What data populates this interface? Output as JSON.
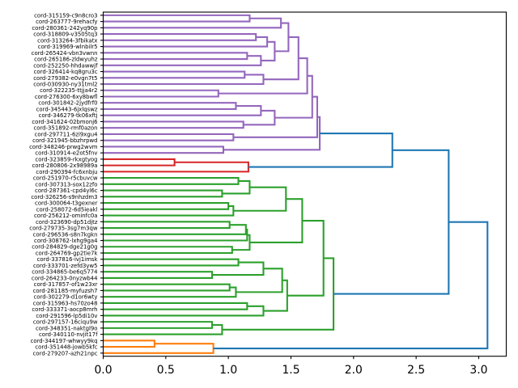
{
  "chart_data": {
    "type": "dendrogram",
    "orientation": "left",
    "title": "",
    "xlabel": "",
    "ylabel": "",
    "xlim": [
      0,
      3.22
    ],
    "grid": false,
    "xticks": {
      "values": [
        0.0,
        0.5,
        1.0,
        1.5,
        2.0,
        2.5,
        3.0
      ],
      "labels": [
        "0.0",
        "0.5",
        "1.0",
        "1.5",
        "2.0",
        "2.5",
        "3.0"
      ]
    },
    "colors": {
      "blue": "#1f77b4",
      "orange": "#ff7f0e",
      "green": "#2ca02c",
      "red": "#d62728",
      "purple": "#9467bd"
    },
    "leaves": [
      "cord-315159-c9n8cro3",
      "cord-263777-9rehacfy",
      "cord-280361-242yq90p",
      "cord-318809-v3505tq3",
      "cord-313264-3fbikatx",
      "cord-319969-wlnbilr5",
      "cord-265424-vbn3vwnn",
      "cord-265186-zldwyuhz",
      "cord-252250-hhdawwjf",
      "cord-326414-kq8gru3c",
      "cord-279382-e0vgn7t5",
      "cord-030930-ny31tml2",
      "cord-322235-ttjja4r2",
      "cord-276300-6xy8bwfl",
      "cord-301842-2jydfrf0",
      "cord-345443-6jxlqswz",
      "cord-346279-tk06xftj",
      "cord-341624-02bmonj6",
      "cord-351892-rmf0azon",
      "cord-297711-6zi9xgu4",
      "cord-321945-bbzhrpwd",
      "cord-348246-prwg2wvm",
      "cord-310914-e2ot5fnv",
      "cord-323859-rkxgtyog",
      "cord-280806-2x98989a",
      "cord-290394-fc6xnbju",
      "cord-251970-r5cbuvcw",
      "cord-307313-sox12zfo",
      "cord-287361-cpd4yl6c",
      "cord-326256-s9nhzdm3",
      "cord-300064-t3gexner",
      "cord-258072-6d5ieakl",
      "cord-256212-ominfc0a",
      "cord-323690-dp51djtz",
      "cord-279735-3sg7m3qw",
      "cord-296536-s8n7kgkn",
      "cord-308762-lxhg9ga4",
      "cord-284829-dge21g0g",
      "cord-264769-gp2tie7k",
      "cord-337816-ivj1imsk",
      "cord-333701-zefd3yw5",
      "cord-334865-be6q5774",
      "cord-264233-0nyzwb44",
      "cord-317857-of1w23xr",
      "cord-281185-myfuzsh7",
      "cord-302279-d1or6wty",
      "cord-315963-hs70zo48",
      "cord-333371-aocp8mrh",
      "cord-291596-lp5di10v",
      "cord-297157-16ciqu9w",
      "cord-348351-naktgl9o",
      "cord-340110-nvjit17f",
      "cord-344197-whwyy9kq",
      "cord-351448-jowb5kfc",
      "cord-279207-azh21npc"
    ],
    "tree": {
      "d": 3.07,
      "k": "blue",
      "c": [
        {
          "d": 2.76,
          "c": [
            {
              "d": 2.31,
              "c": [
                {
                  "d": 1.73,
                  "k": "purple",
                  "c": [
                    {
                      "d": 1.71,
                      "c": [
                        {
                          "d": 1.67,
                          "c": [
                            {
                              "d": 1.63,
                              "c": [
                                {
                                  "d": 1.56,
                                  "c": [
                                    {
                                      "d": 1.48,
                                      "c": [
                                        {
                                          "d": 1.42,
                                          "c": [
                                            {
                                              "d": 1.17,
                                              "c": [
                                                0,
                                                1
                                              ]
                                            },
                                            2
                                          ]
                                        },
                                        {
                                          "d": 1.37,
                                          "c": [
                                            {
                                              "d": 1.31,
                                              "c": [
                                                {
                                                  "d": 1.22,
                                                  "c": [
                                                    3,
                                                    4
                                                  ]
                                                },
                                                5
                                              ]
                                            },
                                            {
                                              "d": 1.26,
                                              "c": [
                                                {
                                                  "d": 1.15,
                                                  "c": [
                                                    6,
                                                    7
                                                  ]
                                                },
                                                8
                                              ]
                                            }
                                          ]
                                        }
                                      ]
                                    },
                                    {
                                      "d": 1.28,
                                      "c": [
                                        {
                                          "d": 1.13,
                                          "c": [
                                            9,
                                            10
                                          ]
                                        },
                                        11
                                      ]
                                    }
                                  ]
                                },
                                {
                                  "d": 0.92,
                                  "c": [
                                    12,
                                    13
                                  ]
                                }
                              ]
                            },
                            {
                              "d": 1.37,
                              "c": [
                                {
                                  "d": 1.26,
                                  "c": [
                                    {
                                      "d": 1.06,
                                      "c": [
                                        14,
                                        15
                                      ]
                                    },
                                    16
                                  ]
                                },
                                {
                                  "d": 1.12,
                                  "c": [
                                    17,
                                    18
                                  ]
                                }
                              ]
                            }
                          ]
                        },
                        {
                          "d": 1.04,
                          "c": [
                            19,
                            20
                          ]
                        }
                      ]
                    },
                    {
                      "d": 0.96,
                      "c": [
                        21,
                        22
                      ]
                    }
                  ]
                },
                {
                  "d": 1.16,
                  "k": "red",
                  "c": [
                    {
                      "d": 0.57,
                      "c": [
                        23,
                        24
                      ]
                    },
                    25
                  ]
                }
              ]
            },
            {
              "d": 1.84,
              "k": "green",
              "c": [
                {
                  "d": 1.76,
                  "c": [
                    {
                      "d": 1.59,
                      "c": [
                        {
                          "d": 1.46,
                          "c": [
                            {
                              "d": 1.17,
                              "c": [
                                {
                                  "d": 1.08,
                                  "c": [
                                    26,
                                    27
                                  ]
                                },
                                {
                                  "d": 0.95,
                                  "c": [
                                    28,
                                    29
                                  ]
                                }
                              ]
                            },
                            {
                              "d": 1.04,
                              "c": [
                                {
                                  "d": 1.0,
                                  "c": [
                                    30,
                                    31
                                  ]
                                },
                                32
                              ]
                            }
                          ]
                        },
                        {
                          "d": 1.17,
                          "c": [
                            {
                              "d": 1.15,
                              "c": [
                                {
                                  "d": 1.14,
                                  "c": [
                                    {
                                      "d": 1.01,
                                      "c": [
                                        33,
                                        34
                                      ]
                                    },
                                    35
                                  ]
                                },
                                36
                              ]
                            },
                            {
                              "d": 1.03,
                              "c": [
                                37,
                                38
                              ]
                            }
                          ]
                        }
                      ]
                    },
                    {
                      "d": 1.47,
                      "c": [
                        {
                          "d": 1.43,
                          "c": [
                            {
                              "d": 1.28,
                              "c": [
                                {
                                  "d": 1.08,
                                  "c": [
                                    39,
                                    40
                                  ]
                                },
                                {
                                  "d": 0.87,
                                  "c": [
                                    41,
                                    42
                                  ]
                                }
                              ]
                            },
                            {
                              "d": 1.06,
                              "c": [
                                {
                                  "d": 1.01,
                                  "c": [
                                    43,
                                    44
                                  ]
                                },
                                45
                              ]
                            }
                          ]
                        },
                        {
                          "d": 1.28,
                          "c": [
                            {
                              "d": 1.15,
                              "c": [
                                46,
                                47
                              ]
                            },
                            48
                          ]
                        }
                      ]
                    }
                  ]
                },
                {
                  "d": 0.95,
                  "c": [
                    {
                      "d": 0.87,
                      "c": [
                        49,
                        50
                      ]
                    },
                    51
                  ]
                }
              ]
            }
          ]
        },
        {
          "d": 0.88,
          "k": "orange",
          "c": [
            {
              "d": 0.41,
              "c": [
                52,
                53
              ]
            },
            54
          ]
        }
      ]
    }
  }
}
